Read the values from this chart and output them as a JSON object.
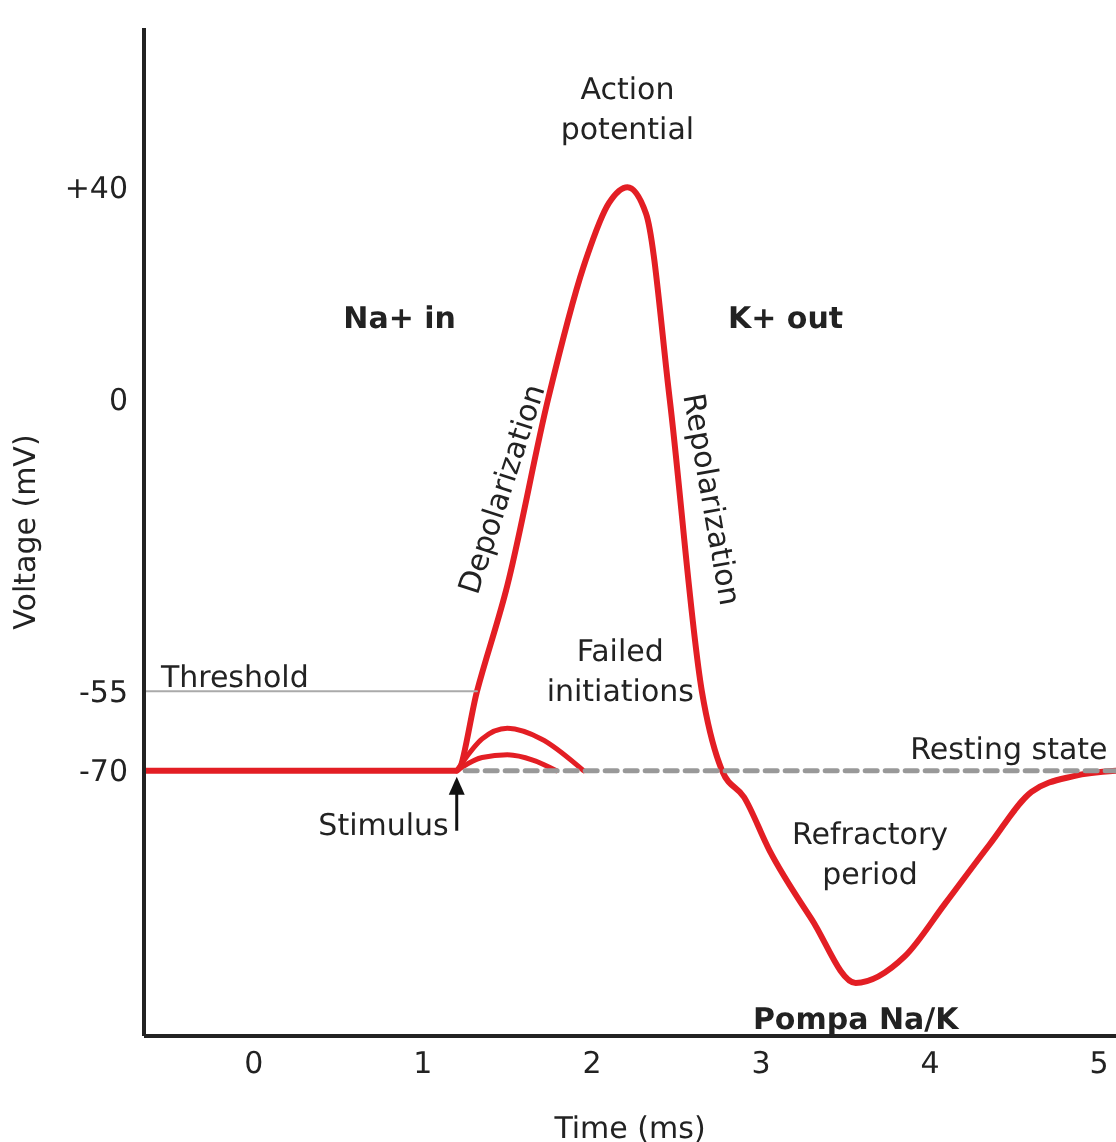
{
  "chart_data": {
    "type": "line",
    "xlabel": "Time (ms)",
    "ylabel": "Voltage (mV)",
    "xlim": [
      -0.65,
      5.1
    ],
    "ylim": [
      -120,
      70
    ],
    "xticks": [
      0,
      1,
      2,
      3,
      4,
      5
    ],
    "yticks": [
      {
        "value": 40,
        "label": "+40"
      },
      0,
      -55,
      -70
    ],
    "marker": "none",
    "series": [
      {
        "color": "#e31e24",
        "x": [
          -0.65,
          1.2,
          1.32,
          1.5,
          1.74,
          1.95,
          2.1,
          2.21,
          2.32,
          2.46,
          2.65,
          2.77,
          2.9,
          3.05,
          3.3,
          3.56,
          3.85,
          4.09,
          4.35,
          4.6,
          4.85,
          5.1
        ],
        "values": [
          -70,
          -70,
          -55,
          -35,
          0,
          25,
          37,
          40,
          35,
          0,
          -55,
          -70,
          -75,
          -85,
          -98,
          -110,
          -105,
          -95,
          -84,
          -74,
          -71,
          -70
        ]
      },
      {
        "color": "#e31e24",
        "x": [
          1.2,
          1.35,
          1.5,
          1.7,
          1.95
        ],
        "values": [
          -70,
          -64,
          -62,
          -64,
          -70
        ]
      },
      {
        "color": "#e31e24",
        "x": [
          1.2,
          1.35,
          1.5,
          1.65,
          1.79
        ],
        "values": [
          -70,
          -67.5,
          -67,
          -68,
          -70
        ]
      },
      {
        "color": "#999999",
        "line_style": "dashed",
        "x": [
          1.25,
          5.1
        ],
        "values": [
          -70,
          -70
        ]
      },
      {
        "color": "#aaaaaa",
        "x": [
          -0.65,
          1.32
        ],
        "values": [
          -55,
          -55
        ]
      }
    ],
    "annotations": [
      {
        "text": "Action potential",
        "x": 2.21,
        "y": 40
      },
      "Na+ in",
      "K+ out",
      "Depolarization",
      "Repolarization",
      "Failed initiations",
      {
        "text": "Threshold",
        "x": -0.55,
        "y": -55
      },
      {
        "text": "Stimulus",
        "x": 1.2,
        "y": -70
      },
      {
        "text": "Resting state",
        "x": 5.05,
        "y": -70
      },
      "Refractory period",
      {
        "text": "Pompa Na/K",
        "x": 3.56,
        "y": -110
      }
    ]
  }
}
